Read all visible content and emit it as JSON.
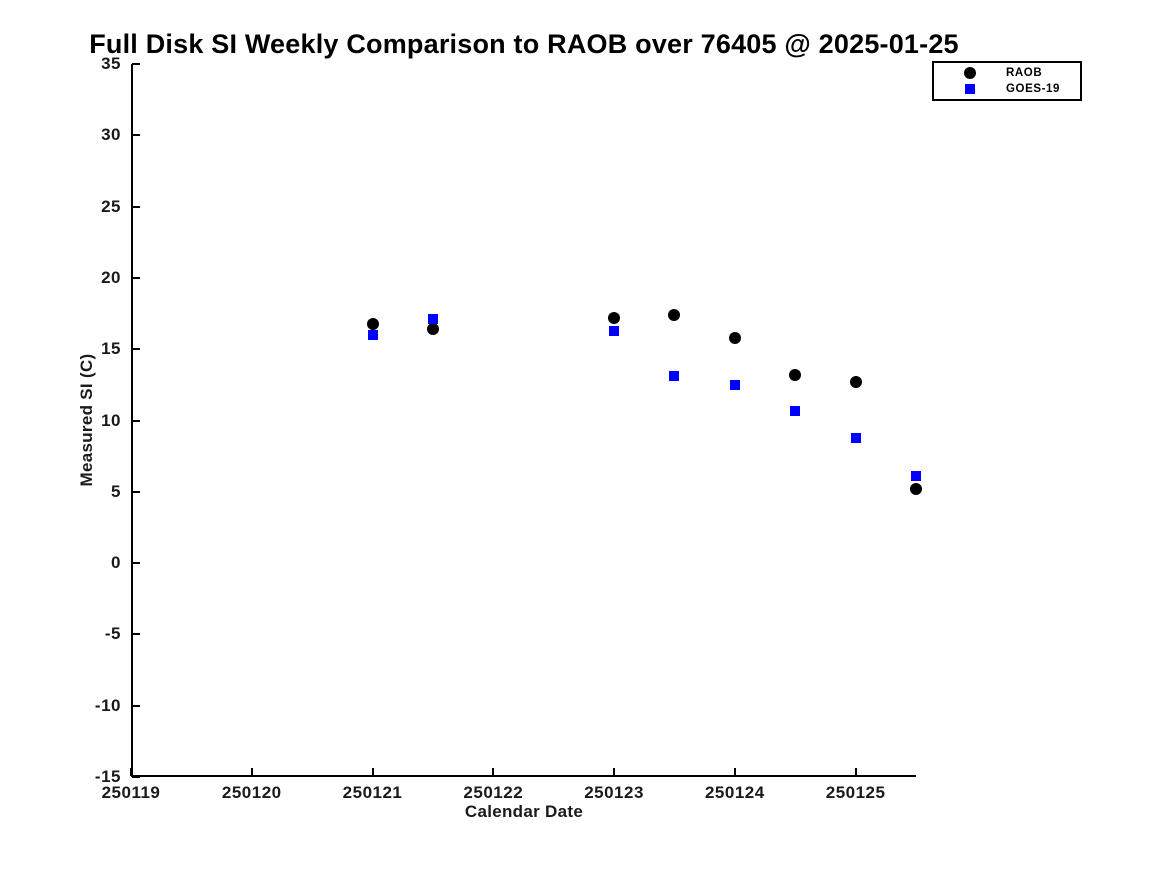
{
  "title": "Full Disk SI Weekly Comparison to RAOB over 76405 @ 2025-01-25",
  "colors": {
    "background": "#ffffff",
    "axis": "#000000",
    "raob": "#000000",
    "goes19": "#0000ff"
  },
  "chart_data": {
    "type": "scatter",
    "title": "Full Disk SI Weekly Comparison to RAOB over 76405 @ 2025-01-25",
    "xlabel": "Calendar Date",
    "ylabel": "Measured SI (C)",
    "xlim": [
      250119,
      250125.5
    ],
    "ylim": [
      -15,
      35
    ],
    "x_ticks": [
      250119,
      250120,
      250121,
      250122,
      250123,
      250124,
      250125
    ],
    "y_ticks": [
      -15,
      -10,
      -5,
      0,
      5,
      10,
      15,
      20,
      25,
      30,
      35
    ],
    "grid": false,
    "legend_position": "outside-top-right",
    "x": [
      250121.0,
      250121.5,
      250123.0,
      250123.5,
      250124.0,
      250124.5,
      250125.0,
      250125.5
    ],
    "series": [
      {
        "name": "RAOB",
        "marker": "circle",
        "color": "#000000",
        "values": [
          16.8,
          16.4,
          17.2,
          17.4,
          15.8,
          13.2,
          12.7,
          5.2
        ]
      },
      {
        "name": "GOES-19",
        "marker": "square",
        "color": "#0000ff",
        "values": [
          16.0,
          17.1,
          16.3,
          13.1,
          12.5,
          10.7,
          8.8,
          6.1
        ]
      }
    ]
  }
}
